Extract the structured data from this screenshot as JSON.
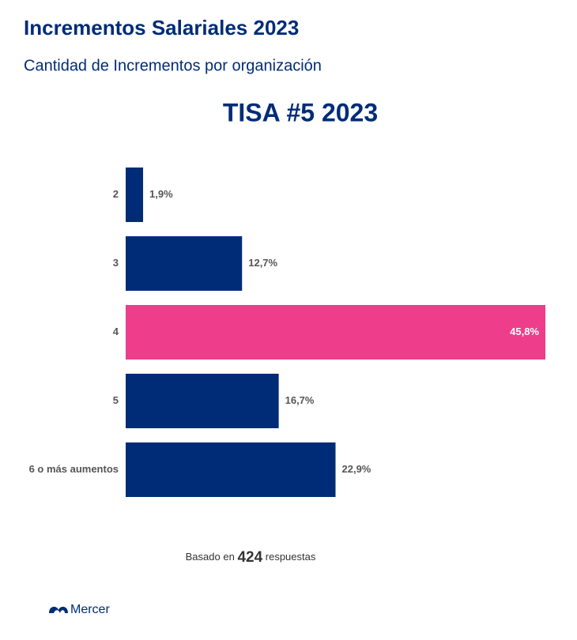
{
  "chart_data": {
    "type": "barh",
    "title": "Incrementos Salariales 2023",
    "subtitle": "Cantidad de Incrementos por organización",
    "chart_title": "TISA #5 2023",
    "categories": [
      "2",
      "3",
      "4",
      "5",
      "6 o más aumentos"
    ],
    "values": [
      1.9,
      12.7,
      45.8,
      16.7,
      22.9
    ],
    "value_labels": [
      "1,9%",
      "12,7%",
      "45,8%",
      "16,7%",
      "22,9%"
    ],
    "colors": [
      "#002c77",
      "#002c77",
      "#ee3d8b",
      "#002c77",
      "#002c77"
    ],
    "footnote": {
      "prefix": "Basado en",
      "count": "424",
      "suffix": "respuestas"
    },
    "brand": "Mercer"
  }
}
